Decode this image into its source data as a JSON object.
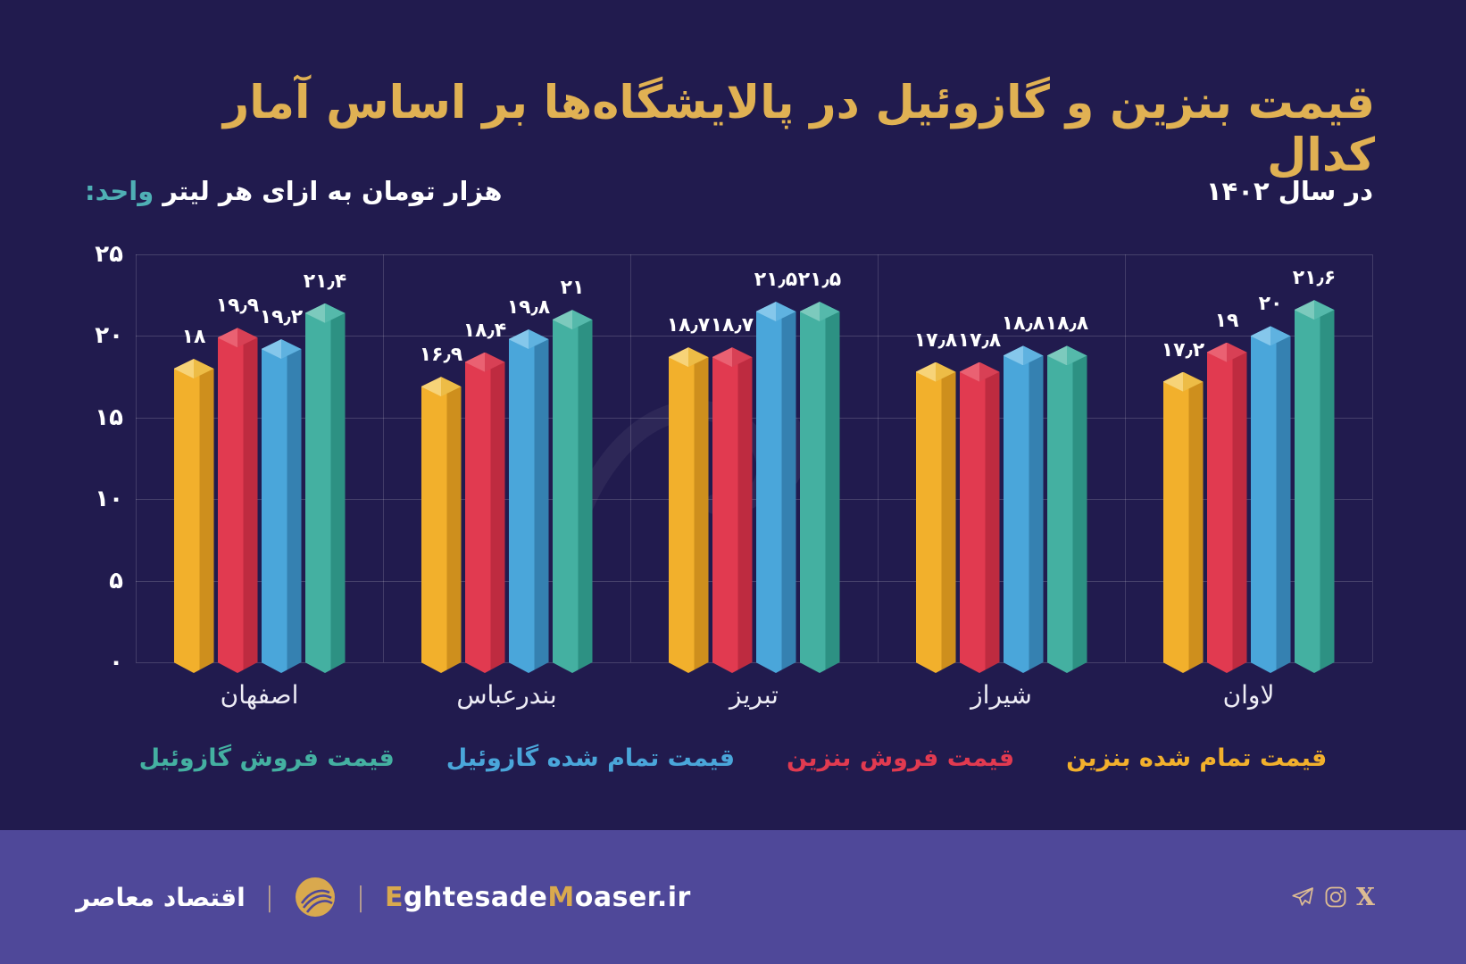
{
  "title": "قیمت بنزین و گازوئیل در پالایشگاه‌ها بر اساس آمار کدال",
  "subtitle": {
    "label": "واحد:",
    "text": "هزار تومان به ازای هر لیتر"
  },
  "period": "در سال ۱۴۰۲",
  "colors": {
    "background": "#211B4E",
    "footer": "#4F4899",
    "title_gold": "#E0B153",
    "unit_teal": "#4FB0B5",
    "grid": "rgba(255,255,255,0.17)",
    "icon_tan": "#DDBC93",
    "logo_gold": "#D9A94E"
  },
  "chart_data": {
    "type": "bar",
    "title": "قیمت بنزین و گازوئیل در پالایشگاه‌ها بر اساس آمار کدال",
    "unit": "هزار تومان به ازای هر لیتر",
    "year": "۱۴۰۲",
    "categories": [
      "اصفهان",
      "بندرعباس",
      "تبریز",
      "شیراز",
      "لاوان"
    ],
    "series": [
      {
        "name": "قیمت تمام شده بنزین",
        "color": "#F2B02C",
        "side": "#CE8F1D",
        "top_light": "#F7D378",
        "top_mid": "#EDBC46",
        "values": [
          18,
          16.9,
          18.7,
          17.8,
          17.2
        ],
        "labels": [
          "۱۸",
          "۱۶٫۹",
          "۱۸٫۷",
          "۱۷٫۸",
          "۱۷٫۲"
        ]
      },
      {
        "name": "قیمت فروش بنزین",
        "color": "#E13A50",
        "side": "#BE2B40",
        "top_light": "#EA6172",
        "top_mid": "#D84055",
        "values": [
          19.9,
          18.4,
          18.7,
          17.8,
          19
        ],
        "labels": [
          "۱۹٫۹",
          "۱۸٫۴",
          "۱۸٫۷",
          "۱۷٫۸",
          "۱۹"
        ]
      },
      {
        "name": "قیمت تمام شده گازوئیل",
        "color": "#4AA6DA",
        "side": "#3581B1",
        "top_light": "#85C7EB",
        "top_mid": "#5FB2E0",
        "values": [
          19.2,
          19.8,
          21.5,
          18.8,
          20
        ],
        "labels": [
          "۱۹٫۲",
          "۱۹٫۸",
          "۲۱٫۵",
          "۱۸٫۸",
          "۲۰"
        ]
      },
      {
        "name": "قیمت فروش گازوئیل",
        "color": "#44B0A1",
        "side": "#2D9183",
        "top_light": "#7CCABD",
        "top_mid": "#55B9AB",
        "values": [
          21.4,
          21,
          21.5,
          18.8,
          21.6
        ],
        "labels": [
          "۲۱٫۴",
          "۲۱",
          "۲۱٫۵",
          "۱۸٫۸",
          "۲۱٫۶"
        ]
      }
    ],
    "ylim": [
      0,
      25
    ],
    "yticks": [
      0,
      5,
      10,
      15,
      20,
      25
    ],
    "ytick_labels": [
      "۰",
      "۵",
      "۱۰",
      "۱۵",
      "۲۰",
      "۲۵"
    ],
    "grid": true,
    "legend_position": "bottom"
  },
  "footer": {
    "brand_fa": "اقتصاد معاصر",
    "divider": "|",
    "url_parts": {
      "p1": "E",
      "p2": "ghtesade",
      "p3": "M",
      "p4": "oaser.ir"
    },
    "socials": [
      "telegram",
      "instagram",
      "x"
    ],
    "x_glyph": "X"
  }
}
